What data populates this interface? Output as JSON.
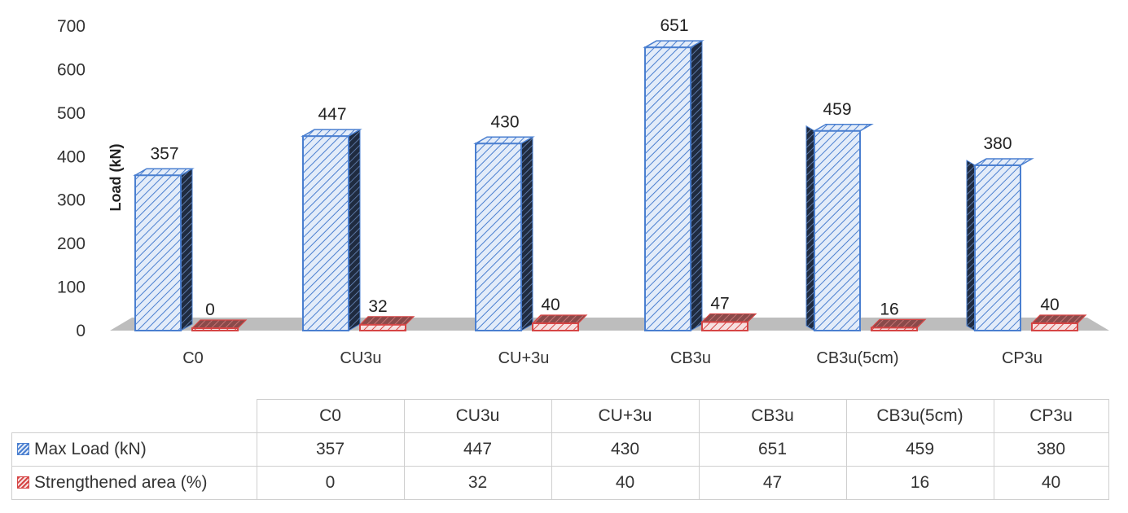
{
  "chart_data": {
    "type": "bar",
    "categories": [
      "C0",
      "CU3u",
      "CU+3u",
      "CB3u",
      "CB3u(5cm)",
      "CP3u"
    ],
    "series": [
      {
        "name": "Max Load (kN)",
        "values": [
          357,
          447,
          430,
          651,
          459,
          380
        ],
        "color": "#4a7fd0",
        "fill": "#dfe9f7"
      },
      {
        "name": "Strengthened area (%)",
        "values": [
          0,
          32,
          40,
          47,
          16,
          40
        ],
        "color": "#d64545",
        "fill": "#f6dede"
      }
    ],
    "data_labels": {
      "series0": [
        "357",
        "447",
        "430",
        "651",
        "459",
        "380"
      ],
      "series1": [
        "0",
        "32",
        "40",
        "47",
        "16",
        "40"
      ]
    },
    "ylabel": "Load (kN)",
    "ylim": [
      0,
      700
    ],
    "yticks": [
      "0",
      "100",
      "200",
      "300",
      "400",
      "500",
      "600",
      "700"
    ],
    "grid": false,
    "legend": "data table below chart"
  }
}
